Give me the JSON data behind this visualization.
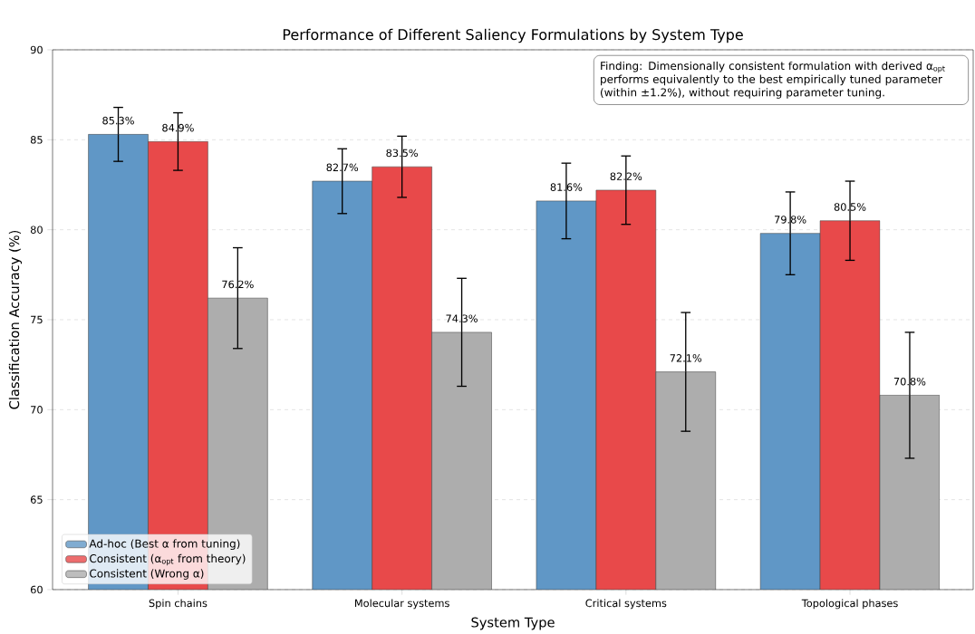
{
  "chart_data": {
    "type": "bar",
    "title": "Performance of Different Saliency Formulations by System Type",
    "xlabel": "System Type",
    "ylabel": "Classification Accuracy (%)",
    "categories": [
      "Spin chains",
      "Molecular systems",
      "Critical systems",
      "Topological phases"
    ],
    "series": [
      {
        "name": "Ad-hoc (Best α from tuning)",
        "color": "#6097c6",
        "values": [
          85.3,
          82.7,
          81.6,
          79.8
        ],
        "errors": [
          1.5,
          1.8,
          2.1,
          2.3
        ],
        "value_labels": [
          "85.3%",
          "82.7%",
          "81.6%",
          "79.8%"
        ]
      },
      {
        "name": "Consistent (α$_{opt}$ from theory)",
        "color": "#e8494a",
        "values": [
          84.9,
          83.5,
          82.2,
          80.5
        ],
        "errors": [
          1.6,
          1.7,
          1.9,
          2.2
        ],
        "value_labels": [
          "84.9%",
          "83.5%",
          "82.2%",
          "80.5%"
        ]
      },
      {
        "name": "Consistent (Wrong α)",
        "color": "#adadad",
        "values": [
          76.2,
          74.3,
          72.1,
          70.8
        ],
        "errors": [
          2.8,
          3.0,
          3.3,
          3.5
        ],
        "value_labels": [
          "76.2%",
          "74.3%",
          "72.1%",
          "70.8%"
        ]
      }
    ],
    "ylim": [
      60,
      90
    ],
    "yticks": [
      60,
      65,
      70,
      75,
      80,
      85,
      90
    ],
    "grid": "y",
    "legend": "bottom left",
    "annotations": [
      "Finding: Dimensionally consistent formulation with derived α$_{opt}$ performs equivalently to the best empirically tuned parameter (within ±1.2%), without requiring parameter tuning."
    ]
  }
}
